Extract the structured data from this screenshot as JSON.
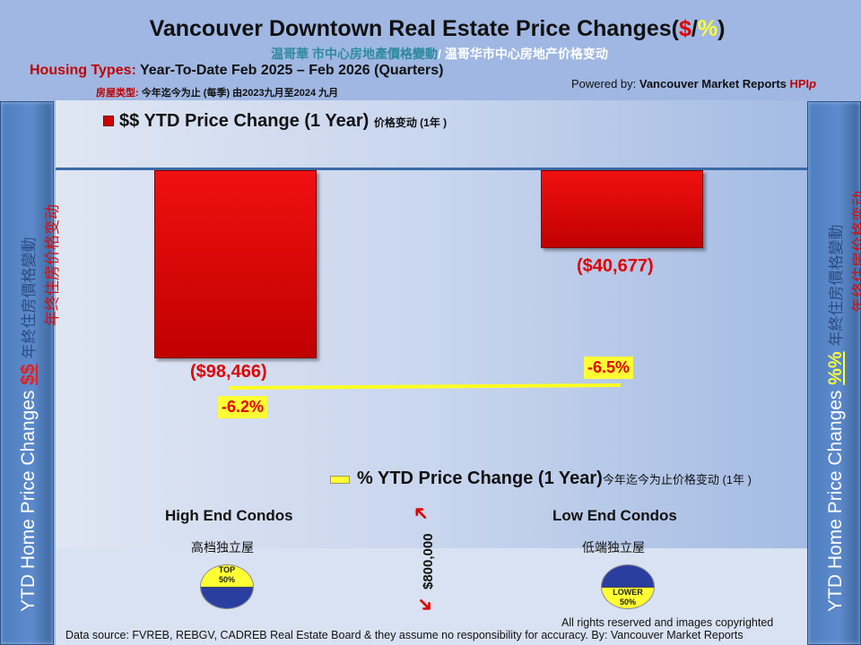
{
  "header": {
    "title": "Vancouver Downtown Real Estate Price Changes(",
    "title_dollar": "$",
    "title_slash": "/",
    "title_pct": "%",
    "title_close": ")",
    "subtitle_trad": "温哥華 市中心房地產價格變動",
    "subtitle_simp": "/ 温哥华市中心房地产价格变动",
    "housing_label": "Housing Types:",
    "housing_value": " Year-To-Date Feb 2025 – Feb 2026 (Quarters)",
    "cn_types_label": "房屋类型:",
    "cn_types_value": " 今年迄今为止 (每季) 由2023九月至2024 九月",
    "powered_label": "Powered by: ",
    "powered_brand": "Vancouver Market Reports ",
    "powered_hpi": "HPI",
    "powered_p": "p"
  },
  "side_left": {
    "text": "YTD Home Price Changes ",
    "symbol": "$$",
    "cn_trad": "年終住房價格變動",
    "cn_simp": "年终住房价格变动"
  },
  "side_right": {
    "text": "YTD Home Price  Changes ",
    "symbol": "%%",
    "cn_trad": "年終住房價格變動",
    "cn_simp": "年终住房价格变动"
  },
  "chart_data": {
    "type": "bar",
    "categories": [
      "High End Condos",
      "Low End Condos"
    ],
    "categories_cn": [
      "高档独立屋",
      "低端独立屋"
    ],
    "series": [
      {
        "name": "$$ YTD Price Change (1 Year)",
        "name_cn": "价格变动 (1年 )",
        "values": [
          -98466,
          -40677
        ],
        "labels": [
          "($98,466)",
          "($40,677)"
        ],
        "color": "#e00000"
      },
      {
        "name": "% YTD Price Change (1 Year)",
        "name_cn": "今年迄今为止价格变动  (1年 )",
        "values": [
          -6.2,
          -6.5
        ],
        "labels": [
          "-6.2%",
          "-6.5%"
        ],
        "color": "#ffff33"
      }
    ],
    "divider_label": "$800,000",
    "badges": [
      [
        "TOP",
        "50%"
      ],
      [
        "LOWER",
        "50%"
      ]
    ]
  },
  "footer": {
    "rights": "All rights reserved and  images copyrighted",
    "source": "Data source: FVREB, REBGV, CADREB Real Estate Board & they assume no responsibility for accuracy. By: Vancouver Market Reports"
  }
}
